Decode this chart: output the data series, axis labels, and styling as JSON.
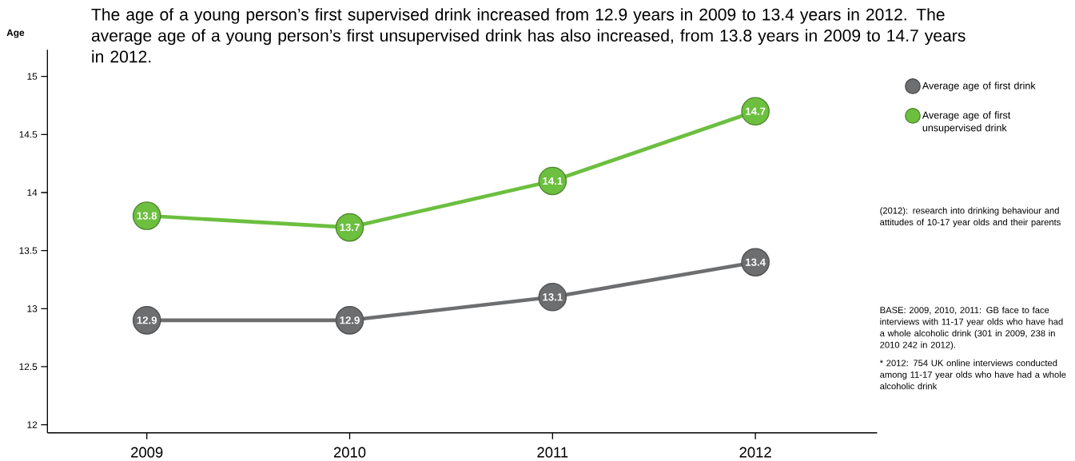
{
  "chart_data": {
    "type": "line",
    "title": "The age of a young person’s first supervised drink increased from 12.9 years in 2009 to 13.4 years in 2012. The average age of a young person’s first unsupervised drink has also increased, from 13.8 years in 2009 to 14.7 years in 2012.",
    "ylabel": "Age",
    "categories": [
      "2009",
      "2010",
      "2011",
      "2012"
    ],
    "series": [
      {
        "name": "Average age of first drink",
        "color": "#6d6e70",
        "values": [
          12.9,
          12.9,
          13.1,
          13.4
        ]
      },
      {
        "name": "Average age of first unsupervised drink",
        "color": "#6cbf3f",
        "values": [
          13.8,
          13.7,
          14.1,
          14.7
        ]
      }
    ],
    "data_labels": true,
    "ylim": [
      11.93,
      15.23
    ],
    "yticks": [
      12,
      12.5,
      13,
      13.5,
      14,
      14.5,
      15
    ],
    "grid": false,
    "legend": "right",
    "marker": "circle",
    "line_style": "solid",
    "annotations": [
      "(2012): research into drinking behaviour and attitudes of 10-17 year olds and their parents",
      "BASE: 2009, 2010, 2011: GB face to face interviews with 11-17 year olds who have had a whole alcoholic drink (301 in 2009, 238 in 2010 242 in 2012).",
      "* 2012: 754 UK online interviews conducted among 11-17 year olds who have had a whole alcoholic drink"
    ]
  }
}
